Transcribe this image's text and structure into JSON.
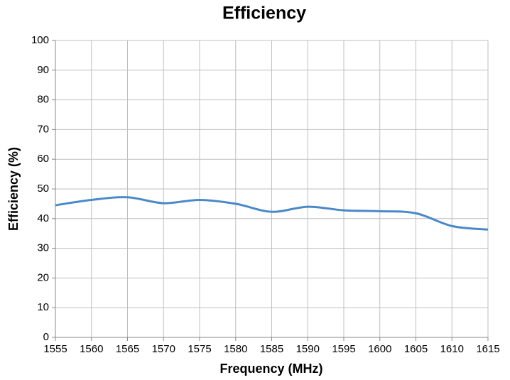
{
  "chart_data": {
    "type": "line",
    "title": "Efficiency",
    "x_label": "Frequency (MHz)",
    "y_label": "Efficiency (%)",
    "x": [
      1555,
      1560,
      1565,
      1570,
      1575,
      1580,
      1585,
      1590,
      1595,
      1600,
      1605,
      1610,
      1615
    ],
    "series": [
      {
        "name": "Efficiency",
        "color": "#4a89c8",
        "values": [
          44.5,
          46.3,
          47.2,
          45.2,
          46.3,
          45.0,
          42.3,
          44.0,
          42.8,
          42.5,
          41.8,
          37.5,
          36.3
        ]
      }
    ],
    "xlim": [
      1555,
      1615
    ],
    "xticks": [
      1555,
      1560,
      1565,
      1570,
      1575,
      1580,
      1585,
      1590,
      1595,
      1600,
      1605,
      1610,
      1615
    ],
    "ylim": [
      0,
      100
    ],
    "yticks": [
      0,
      10,
      20,
      30,
      40,
      50,
      60,
      70,
      80,
      90,
      100
    ],
    "grid": true,
    "smooth": true
  }
}
